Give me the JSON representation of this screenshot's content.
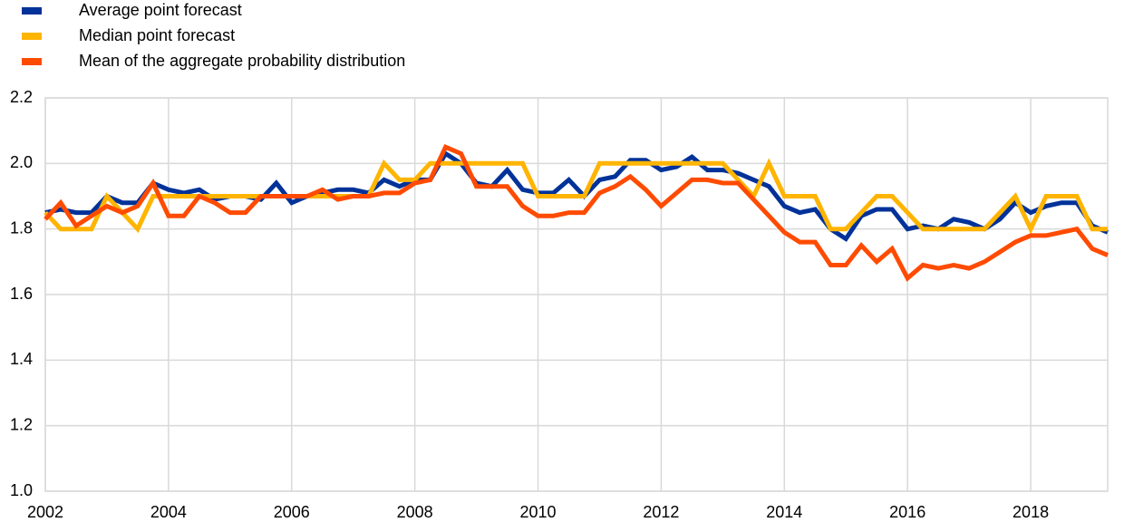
{
  "chart_data": {
    "type": "line",
    "x": [
      2002,
      2002.25,
      2002.5,
      2002.75,
      2003,
      2003.25,
      2003.5,
      2003.75,
      2004,
      2004.25,
      2004.5,
      2004.75,
      2005,
      2005.25,
      2005.5,
      2005.75,
      2006,
      2006.25,
      2006.5,
      2006.75,
      2007,
      2007.25,
      2007.5,
      2007.75,
      2008,
      2008.25,
      2008.5,
      2008.75,
      2009,
      2009.25,
      2009.5,
      2009.75,
      2010,
      2010.25,
      2010.5,
      2010.75,
      2011,
      2011.25,
      2011.5,
      2011.75,
      2012,
      2012.25,
      2012.5,
      2012.75,
      2013,
      2013.25,
      2013.5,
      2013.75,
      2014,
      2014.25,
      2014.5,
      2014.75,
      2015,
      2015.25,
      2015.5,
      2015.75,
      2016,
      2016.25,
      2016.5,
      2016.75,
      2017,
      2017.25,
      2017.5,
      2017.75,
      2018,
      2018.25,
      2018.5,
      2018.75,
      2019,
      2019.25
    ],
    "series": [
      {
        "name": "Average point forecast",
        "color": "#003299",
        "values": [
          1.85,
          1.86,
          1.85,
          1.85,
          1.9,
          1.88,
          1.88,
          1.94,
          1.92,
          1.91,
          1.92,
          1.89,
          1.9,
          1.9,
          1.89,
          1.94,
          1.88,
          1.9,
          1.91,
          1.92,
          1.92,
          1.91,
          1.95,
          1.93,
          1.95,
          1.95,
          2.03,
          2.0,
          1.94,
          1.93,
          1.98,
          1.92,
          1.91,
          1.91,
          1.95,
          1.9,
          1.95,
          1.96,
          2.01,
          2.01,
          1.98,
          1.99,
          2.02,
          1.98,
          1.98,
          1.97,
          1.95,
          1.93,
          1.87,
          1.85,
          1.86,
          1.8,
          1.77,
          1.84,
          1.86,
          1.86,
          1.8,
          1.81,
          1.8,
          1.83,
          1.82,
          1.8,
          1.83,
          1.88,
          1.85,
          1.87,
          1.88,
          1.88,
          1.81,
          1.79
        ]
      },
      {
        "name": "Median point forecast",
        "color": "#ffb400",
        "values": [
          1.85,
          1.8,
          1.8,
          1.8,
          1.9,
          1.85,
          1.8,
          1.9,
          1.9,
          1.9,
          1.9,
          1.9,
          1.9,
          1.9,
          1.9,
          1.9,
          1.9,
          1.9,
          1.9,
          1.9,
          1.9,
          1.9,
          2.0,
          1.95,
          1.95,
          2.0,
          2.0,
          2.0,
          2.0,
          2.0,
          2.0,
          2.0,
          1.9,
          1.9,
          1.9,
          1.9,
          2.0,
          2.0,
          2.0,
          2.0,
          2.0,
          2.0,
          2.0,
          2.0,
          2.0,
          1.95,
          1.9,
          2.0,
          1.9,
          1.9,
          1.9,
          1.8,
          1.8,
          1.85,
          1.9,
          1.9,
          1.85,
          1.8,
          1.8,
          1.8,
          1.8,
          1.8,
          1.85,
          1.9,
          1.8,
          1.9,
          1.9,
          1.9,
          1.8,
          1.8
        ]
      },
      {
        "name": "Mean of the aggregate probability distribution",
        "color": "#ff4b00",
        "values": [
          1.83,
          1.88,
          1.81,
          1.84,
          1.87,
          1.85,
          1.87,
          1.94,
          1.84,
          1.84,
          1.9,
          1.88,
          1.85,
          1.85,
          1.9,
          1.9,
          1.9,
          1.9,
          1.92,
          1.89,
          1.9,
          1.9,
          1.91,
          1.91,
          1.94,
          1.95,
          2.05,
          2.03,
          1.93,
          1.93,
          1.93,
          1.87,
          1.84,
          1.84,
          1.85,
          1.85,
          1.91,
          1.93,
          1.96,
          1.92,
          1.87,
          1.91,
          1.95,
          1.95,
          1.94,
          1.94,
          1.89,
          1.84,
          1.79,
          1.76,
          1.76,
          1.69,
          1.69,
          1.75,
          1.7,
          1.74,
          1.65,
          1.69,
          1.68,
          1.69,
          1.68,
          1.7,
          1.73,
          1.76,
          1.78,
          1.78,
          1.79,
          1.8,
          1.74,
          1.72
        ]
      }
    ],
    "xlim": [
      2002,
      2019.25
    ],
    "xticks": [
      2002,
      2004,
      2006,
      2008,
      2010,
      2012,
      2014,
      2016,
      2018
    ],
    "ylim": [
      1,
      2.2
    ],
    "yticks": [
      {
        "value": 1,
        "label": "1.0"
      },
      1.2,
      1.4,
      1.6,
      1.8,
      {
        "value": 2,
        "label": "2.0"
      },
      2.2
    ],
    "grid": true
  }
}
